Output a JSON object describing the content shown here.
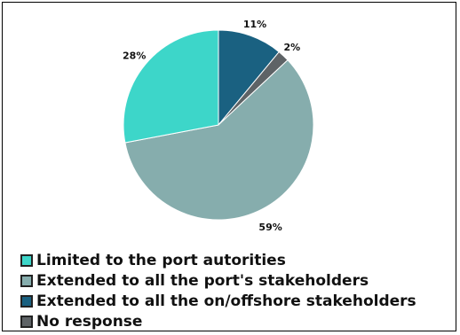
{
  "chart_data": {
    "type": "pie",
    "title": "",
    "slices": [
      {
        "label": "Extended to all the on/offshore stakeholders",
        "value": 11,
        "display": "11%",
        "color": "#1a6181"
      },
      {
        "label": "No response",
        "value": 2,
        "display": "2%",
        "color": "#5e6366"
      },
      {
        "label": "Extended to all the port's stakeholders",
        "value": 59,
        "display": "59%",
        "color": "#86adad"
      },
      {
        "label": "Limited to the port autorities",
        "value": 28,
        "display": "28%",
        "color": "#3dd6c9"
      }
    ],
    "legend": [
      {
        "label": "Limited to the port autorities",
        "color": "#3dd6c9"
      },
      {
        "label": "Extended to all the port's stakeholders",
        "color": "#86adad"
      },
      {
        "label": "Extended to all the on/offshore stakeholders",
        "color": "#1a6181"
      },
      {
        "label": "No response",
        "color": "#5e6366"
      }
    ],
    "legend_position": "bottom-left"
  }
}
